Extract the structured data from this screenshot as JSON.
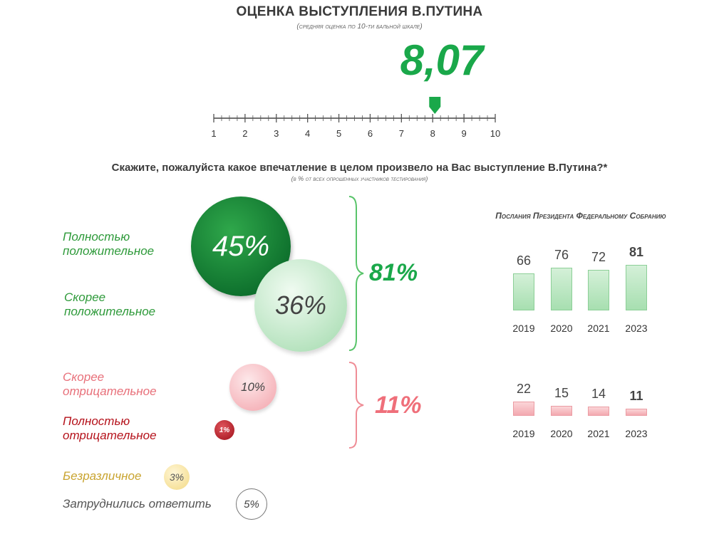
{
  "header": {
    "title": "ОЦЕНКА ВЫСТУПЛЕНИЯ В.ПУТИНА",
    "subtitle": "(средняя оценка по 10-ти бальной шкале)",
    "score_text": "8,07"
  },
  "question": {
    "title": "Скажите, пожалуйста какое впечатление в целом произвело на Вас выступление В.Путина?*",
    "subtitle": "(в % от всех опрошенных участников тестирования)"
  },
  "bubbles": {
    "fully_positive": {
      "label": "Полностью положительное",
      "value": 45,
      "text": "45%"
    },
    "rather_positive": {
      "label": "Скорее положительное",
      "value": 36,
      "text": "36%"
    },
    "rather_negative": {
      "label": "Скорее отрицательное",
      "value": 10,
      "text": "10%"
    },
    "fully_negative": {
      "label": "Полностью отрицательное",
      "value": 1,
      "text": "1%"
    },
    "indifferent": {
      "label": "Безразличное",
      "value": 3,
      "text": "3%"
    },
    "hard_to_say": {
      "label": "Затруднились ответить",
      "value": 5,
      "text": "5%"
    }
  },
  "totals": {
    "positive": "81%",
    "negative": "11%"
  },
  "colors": {
    "green": "#1aa84a",
    "dark_green": "#0b6b2a",
    "light_green": "#a9ddb3",
    "pink": "#f4aab1",
    "red": "#b5121b",
    "gold": "#f4dc8c"
  },
  "chart_data": [
    {
      "type": "line",
      "title": "",
      "x_range": [
        1,
        10
      ],
      "ticks": [
        "1",
        "2",
        "3",
        "4",
        "5",
        "6",
        "7",
        "8",
        "9",
        "10"
      ],
      "marker_value": 8.07,
      "marker_label": "8,07"
    },
    {
      "type": "bar",
      "title": "Послания Президента Федеральному Собранию",
      "categories": [
        "2019",
        "2020",
        "2021",
        "2023"
      ],
      "series": [
        {
          "values": [
            66,
            76,
            72,
            81
          ]
        }
      ]
    },
    {
      "type": "bar",
      "title": "",
      "categories": [
        "2019",
        "2020",
        "2021",
        "2023"
      ],
      "series": [
        {
          "values": [
            22,
            15,
            14,
            11
          ]
        }
      ]
    }
  ]
}
